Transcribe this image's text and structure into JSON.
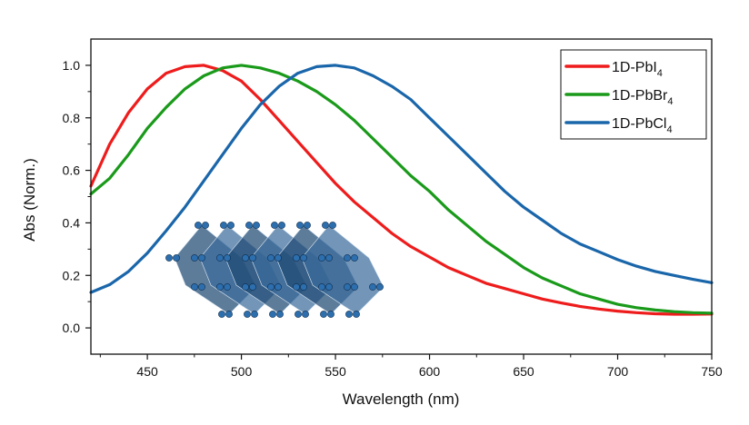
{
  "chart_data": {
    "type": "line",
    "title": "",
    "xlabel": "Wavelength (nm)",
    "ylabel": "Abs (Norm.)",
    "xlim": [
      420,
      750
    ],
    "ylim": [
      -0.1,
      1.1
    ],
    "x_ticks": [
      {
        "value": 450,
        "label": "450"
      },
      {
        "value": 500,
        "label": "500"
      },
      {
        "value": 550,
        "label": "550"
      },
      {
        "value": 600,
        "label": "600"
      },
      {
        "value": 650,
        "label": "650"
      },
      {
        "value": 700,
        "label": "700"
      },
      {
        "value": 750,
        "label": "750"
      }
    ],
    "y_ticks": [
      {
        "value": 0.0,
        "label": "0.0"
      },
      {
        "value": 0.2,
        "label": "0.2"
      },
      {
        "value": 0.4,
        "label": "0.4"
      },
      {
        "value": 0.6,
        "label": "0.6"
      },
      {
        "value": 0.8,
        "label": "0.8"
      },
      {
        "value": 1.0,
        "label": "1.0"
      }
    ],
    "grid": false,
    "legend_position": "top-right",
    "series": [
      {
        "name": "1D-PbI",
        "subscript": "4",
        "color": "#ee1c1c",
        "x": [
          420,
          430,
          440,
          450,
          460,
          470,
          480,
          490,
          500,
          510,
          520,
          530,
          540,
          550,
          560,
          570,
          580,
          590,
          600,
          610,
          620,
          630,
          640,
          650,
          660,
          670,
          680,
          690,
          700,
          710,
          720,
          730,
          740,
          750
        ],
        "y": [
          0.54,
          0.7,
          0.82,
          0.91,
          0.97,
          0.995,
          1.0,
          0.98,
          0.94,
          0.87,
          0.79,
          0.71,
          0.63,
          0.55,
          0.48,
          0.42,
          0.36,
          0.31,
          0.27,
          0.23,
          0.2,
          0.17,
          0.15,
          0.13,
          0.11,
          0.095,
          0.082,
          0.072,
          0.064,
          0.058,
          0.054,
          0.052,
          0.052,
          0.053
        ]
      },
      {
        "name": "1D-PbBr",
        "subscript": "4",
        "color": "#1a9a1a",
        "x": [
          420,
          430,
          440,
          450,
          460,
          470,
          480,
          490,
          500,
          510,
          520,
          530,
          540,
          550,
          560,
          570,
          580,
          590,
          600,
          610,
          620,
          630,
          640,
          650,
          660,
          670,
          680,
          690,
          700,
          710,
          720,
          730,
          740,
          750
        ],
        "y": [
          0.51,
          0.57,
          0.66,
          0.76,
          0.84,
          0.91,
          0.96,
          0.99,
          1.0,
          0.99,
          0.97,
          0.94,
          0.9,
          0.85,
          0.79,
          0.72,
          0.65,
          0.58,
          0.52,
          0.45,
          0.39,
          0.33,
          0.28,
          0.23,
          0.19,
          0.16,
          0.13,
          0.11,
          0.09,
          0.077,
          0.068,
          0.062,
          0.058,
          0.056
        ]
      },
      {
        "name": "1D-PbCl",
        "subscript": "4",
        "color": "#1a66aa",
        "x": [
          420,
          430,
          440,
          450,
          460,
          470,
          480,
          490,
          500,
          510,
          520,
          530,
          540,
          550,
          560,
          570,
          580,
          590,
          600,
          610,
          620,
          630,
          640,
          650,
          660,
          670,
          680,
          690,
          700,
          710,
          720,
          730,
          740,
          750
        ],
        "y": [
          0.135,
          0.165,
          0.215,
          0.285,
          0.37,
          0.46,
          0.56,
          0.66,
          0.76,
          0.85,
          0.92,
          0.97,
          0.995,
          1.0,
          0.99,
          0.96,
          0.92,
          0.87,
          0.8,
          0.73,
          0.66,
          0.59,
          0.52,
          0.46,
          0.41,
          0.36,
          0.32,
          0.29,
          0.26,
          0.235,
          0.215,
          0.2,
          0.185,
          0.172
        ]
      }
    ]
  },
  "inset_image": {
    "name": "1D lead halide octahedral chain structure",
    "colors": {
      "octahedron": "#3c6c9c",
      "octahedron_dark": "#1f4a73",
      "atom": "#2d6fae"
    }
  }
}
